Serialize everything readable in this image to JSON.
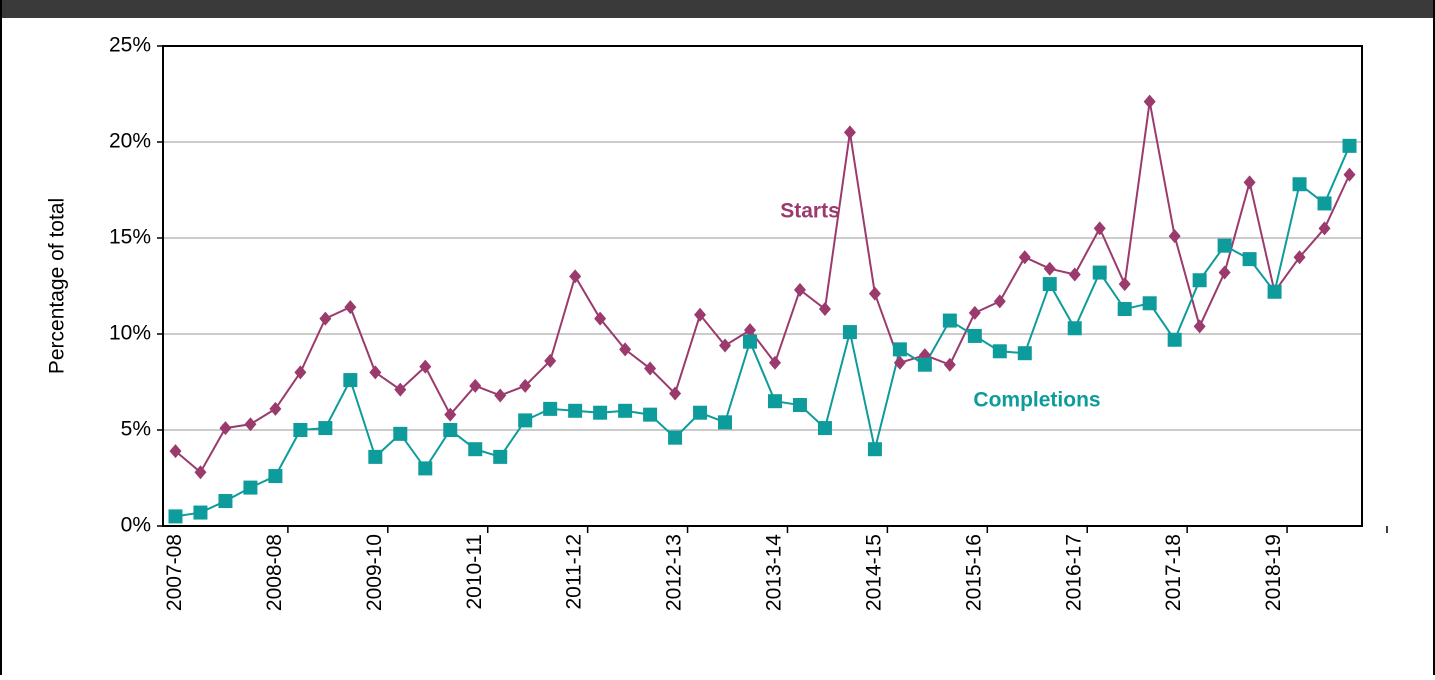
{
  "chart_data": {
    "type": "line",
    "ylabel": "Percentage of total",
    "categories": [
      "2007-08",
      null,
      null,
      null,
      "2008-08",
      null,
      null,
      null,
      "2009-10",
      null,
      null,
      null,
      "2010-11",
      null,
      null,
      null,
      "2011-12",
      null,
      null,
      null,
      "2012-13",
      null,
      null,
      null,
      "2013-14",
      null,
      null,
      null,
      "2014-15",
      null,
      null,
      null,
      "2015-16",
      null,
      null,
      null,
      "2016-17",
      null,
      null,
      null,
      "2017-18",
      null,
      null,
      null,
      "2018-19",
      null,
      null,
      null
    ],
    "series": [
      {
        "name": "Starts",
        "color": "#9b3a6c",
        "marker": "diamond",
        "values": [
          3.9,
          2.8,
          5.1,
          5.3,
          6.1,
          8.0,
          10.8,
          11.4,
          8.0,
          7.1,
          8.3,
          5.8,
          7.3,
          6.8,
          7.3,
          8.6,
          13.0,
          10.8,
          9.2,
          8.2,
          6.9,
          11.0,
          9.4,
          10.2,
          8.5,
          12.3,
          11.3,
          20.5,
          12.1,
          8.5,
          8.9,
          8.4,
          11.1,
          11.7,
          14.0,
          13.4,
          13.1,
          15.5,
          12.6,
          22.1,
          15.1,
          10.4,
          13.2,
          17.9,
          12.2,
          14.0,
          15.5,
          18.3
        ]
      },
      {
        "name": "Completions",
        "color": "#0e9b9b",
        "marker": "square",
        "values": [
          0.5,
          0.7,
          1.3,
          2.0,
          2.6,
          5.0,
          5.1,
          7.6,
          3.6,
          4.8,
          3.0,
          5.0,
          4.0,
          3.6,
          5.5,
          6.1,
          6.0,
          5.9,
          6.0,
          5.8,
          4.6,
          5.9,
          5.4,
          9.6,
          6.5,
          6.3,
          5.1,
          10.1,
          4.0,
          9.2,
          8.4,
          10.7,
          9.9,
          9.1,
          9.0,
          12.6,
          10.3,
          13.2,
          11.3,
          11.6,
          9.7,
          12.8,
          14.6,
          13.9,
          12.2,
          17.8,
          16.8,
          19.8
        ]
      }
    ],
    "ylim": [
      0,
      25
    ],
    "yticks": [
      {
        "value": 0,
        "label": "0%"
      },
      {
        "value": 5,
        "label": "5%"
      },
      {
        "value": 10,
        "label": "10%"
      },
      {
        "value": 15,
        "label": "15%"
      },
      {
        "value": 20,
        "label": "20%"
      },
      {
        "value": 25,
        "label": "25%"
      }
    ],
    "grid": true
  }
}
